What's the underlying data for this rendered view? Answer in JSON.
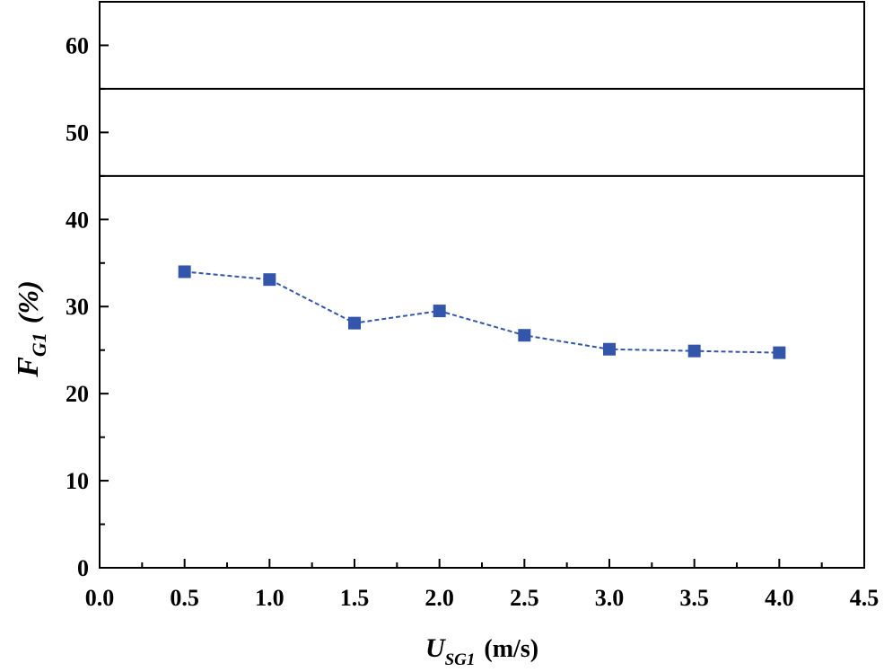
{
  "chart_data": {
    "type": "line",
    "x": [
      0.5,
      1.0,
      1.5,
      2.0,
      2.5,
      3.0,
      3.5,
      4.0
    ],
    "series": [
      {
        "values": [
          34.0,
          33.1,
          28.1,
          29.5,
          26.7,
          25.1,
          24.9,
          24.7
        ]
      }
    ],
    "xlabel": {
      "main": "U",
      "sub": "SG1",
      "unit": "(m/s)"
    },
    "ylabel": {
      "main": "F",
      "sub": "G1",
      "unit": "(%)"
    },
    "xlim": [
      0.0,
      4.5
    ],
    "ylim": [
      0,
      65
    ],
    "xticks": [
      "0.0",
      "0.5",
      "1.0",
      "1.5",
      "2.0",
      "2.5",
      "3.0",
      "3.5",
      "4.0",
      "4.5"
    ],
    "yticks": [
      "0",
      "10",
      "20",
      "30",
      "40",
      "50",
      "60"
    ],
    "reference_lines_y": [
      45,
      55
    ],
    "grid": false,
    "series_color": "#3355aa",
    "marker": "square",
    "line_style": "dashed"
  }
}
